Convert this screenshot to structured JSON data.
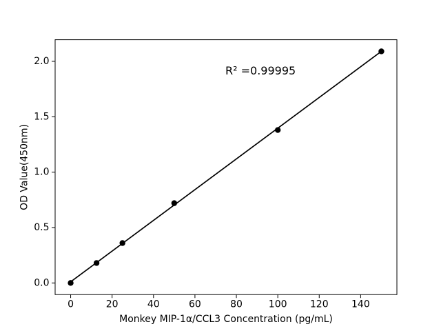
{
  "figure": {
    "background": "#ffffff",
    "foreground": "#000000"
  },
  "chart_data": {
    "type": "scatter",
    "xlabel": "Monkey MIP-1α/CCL3 Concentration (pg/mL)",
    "ylabel": "OD Value(450nm)",
    "annotation": {
      "text": "R² =0.99995"
    },
    "x": [
      0,
      12.5,
      25,
      50,
      100,
      150
    ],
    "y": [
      0.0,
      0.18,
      0.36,
      0.72,
      1.38,
      2.09
    ],
    "trend_line": {
      "x1": 0,
      "y1": 0.01,
      "x2": 150,
      "y2": 2.09
    },
    "xlim": [
      -7.5,
      157.5
    ],
    "ylim": [
      -0.105,
      2.195
    ],
    "xticks": {
      "values": [
        0,
        20,
        40,
        60,
        80,
        100,
        120,
        140
      ],
      "labels": [
        "0",
        "20",
        "40",
        "60",
        "80",
        "100",
        "120",
        "140"
      ]
    },
    "yticks": {
      "values": [
        0.0,
        0.5,
        1.0,
        1.5,
        2.0
      ],
      "labels": [
        "0.0",
        "0.5",
        "1.0",
        "1.5",
        "2.0"
      ]
    },
    "grid": false,
    "legend": null,
    "marker_color": "#000000",
    "line_color": "#000000",
    "axis_color": "#000000"
  }
}
